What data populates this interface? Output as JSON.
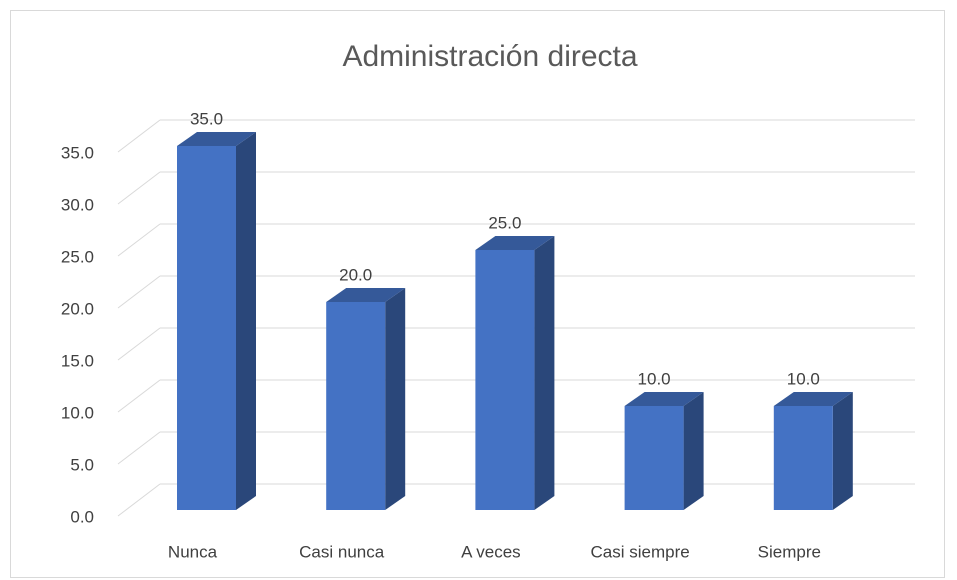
{
  "chart_data": {
    "type": "bar",
    "title": "Administración directa",
    "categories": [
      "Nunca",
      "Casi nunca",
      "A veces",
      "Casi siempre",
      "Siempre"
    ],
    "values": [
      35,
      20,
      25,
      10,
      10
    ],
    "value_labels": [
      "35.0",
      "20.0",
      "25.0",
      "10.0",
      "10.0"
    ],
    "color": "#4472c4",
    "ylim": [
      0,
      35
    ],
    "yticks": [
      {
        "value": 0,
        "label": "0.0"
      },
      {
        "value": 5,
        "label": "5.0"
      },
      {
        "value": 10,
        "label": "10.0"
      },
      {
        "value": 15,
        "label": "15.0"
      },
      {
        "value": 20,
        "label": "20.0"
      },
      {
        "value": 25,
        "label": "25.0"
      },
      {
        "value": 30,
        "label": "30.0"
      },
      {
        "value": 35,
        "label": "35.0"
      }
    ],
    "grid": true
  }
}
